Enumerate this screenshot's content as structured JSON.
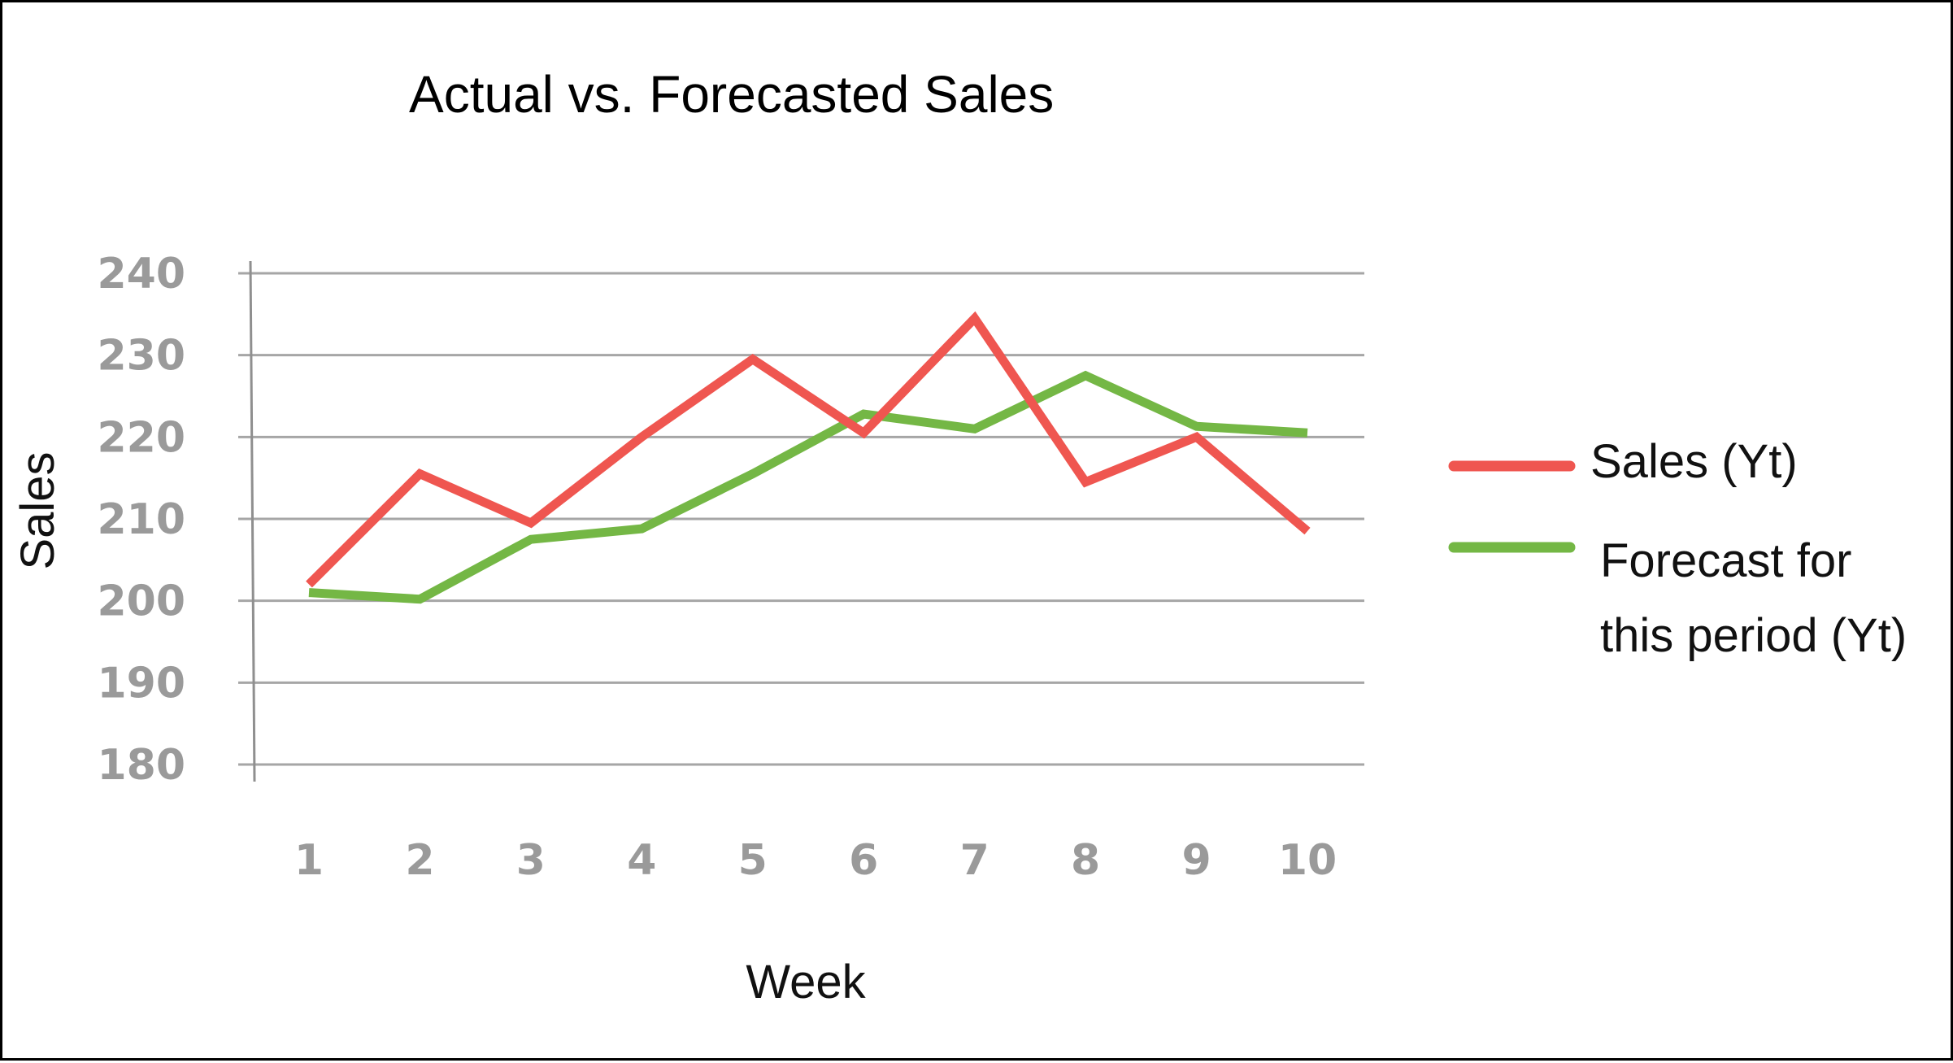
{
  "chart_data": {
    "type": "line",
    "title": "Actual vs. Forecasted Sales",
    "xlabel": "Week",
    "ylabel": "Sales",
    "x": [
      1,
      2,
      3,
      4,
      5,
      6,
      7,
      8,
      9,
      10
    ],
    "x_tick_labels": [
      "1",
      "2",
      "3",
      "4",
      "5",
      "6",
      "7",
      "8",
      "9",
      "10"
    ],
    "y_tick_labels": [
      "240",
      "230",
      "220",
      "210",
      "200",
      "190",
      "180"
    ],
    "y_ticks": [
      240,
      230,
      220,
      210,
      200,
      190,
      180
    ],
    "ylim": [
      180,
      240
    ],
    "grid": "horizontal",
    "legend_position": "right",
    "series": [
      {
        "name": "Sales (Yt)",
        "color": "#ef5650",
        "values": [
          202,
          215.5,
          209.5,
          220,
          229.5,
          220.5,
          234.5,
          214.5,
          220,
          208.5
        ]
      },
      {
        "name": "Forecast for this period (Yt)",
        "name_lines": [
          "Forecast for",
          "this period (Yt)"
        ],
        "color": "#74b745",
        "values": [
          201,
          200.2,
          207.5,
          208.8,
          215.5,
          222.8,
          221,
          227.5,
          221.3,
          220.5
        ]
      }
    ]
  }
}
